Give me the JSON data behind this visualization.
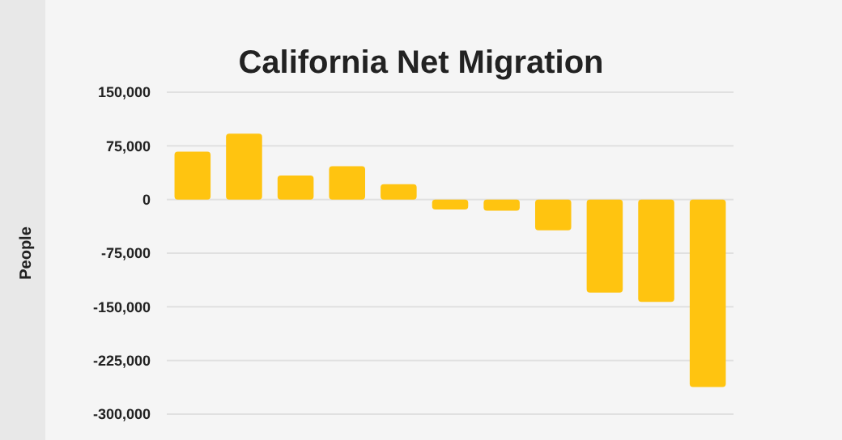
{
  "chart_data": {
    "type": "bar",
    "title": "California Net Migration",
    "ylabel": "People",
    "categories": [
      null,
      null,
      null,
      null,
      null,
      null,
      null,
      null,
      null,
      null,
      null
    ],
    "values": [
      67000,
      92000,
      33500,
      46500,
      21500,
      -14000,
      -15500,
      -43000,
      -130000,
      -143000,
      -262000
    ],
    "color": "#ffc410",
    "ylim": [
      -300000,
      150000
    ],
    "yticks": [
      {
        "value": 150000,
        "label": "150,000"
      },
      {
        "value": 75000,
        "label": "75,000"
      },
      0,
      {
        "value": -75000,
        "label": "-75,000"
      },
      {
        "value": -150000,
        "label": "-150,000"
      },
      {
        "value": -225000,
        "label": "-225,000"
      },
      {
        "value": -300000,
        "label": "-300,000"
      }
    ],
    "grid": true
  }
}
